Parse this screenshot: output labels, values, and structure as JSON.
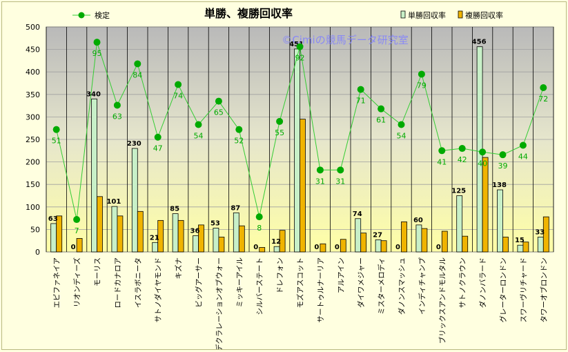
{
  "chart_data": {
    "type": "bar",
    "title": "単勝、複勝回収率",
    "watermark": "©Cimiの競馬データ研究室",
    "ylim": [
      0,
      500
    ],
    "yticks": [
      0,
      50,
      100,
      150,
      200,
      250,
      300,
      350,
      400,
      450,
      500
    ],
    "grid": true,
    "legend_placement": "top",
    "categories": [
      "エピファネイア",
      "リオンディーズ",
      "モーリス",
      "ロードカナロア",
      "イスラボニータ",
      "サトノダイヤモンド",
      "キズナ",
      "ビッグアーサー",
      "デクラレーションオブウォー",
      "ミッキーアイル",
      "シルバーステート",
      "ドレフォン",
      "モズアスコット",
      "サートゥルナーリア",
      "アルアイン",
      "ダイワメジャー",
      "ミスターメロディ",
      "ダノンスマッシュ",
      "インディチャンプ",
      "ブリックスアンドモルタル",
      "サトノクラウン",
      "ダノンバラード",
      "グレーターロンドン",
      "スワーヴリチャード",
      "タワーオブロンドン"
    ],
    "series": [
      {
        "name": "単勝回収率",
        "kind": "bar",
        "color": "#c8f0c8",
        "values": [
          63,
          0,
          340,
          101,
          230,
          21,
          85,
          36,
          53,
          87,
          0,
          12,
          451,
          0,
          0,
          74,
          27,
          0,
          60,
          0,
          125,
          456,
          138,
          15,
          33
        ],
        "labels": [
          "63",
          "0",
          "340",
          "101",
          "230",
          "21",
          "85",
          "36",
          "53",
          "87",
          "0",
          "12",
          "451",
          "0",
          "0",
          "74",
          "27",
          "0",
          "60",
          "0",
          "125",
          "456",
          "138",
          "15",
          "33"
        ]
      },
      {
        "name": "複勝回収率",
        "kind": "bar",
        "color": "#f0b400",
        "values": [
          80,
          30,
          123,
          80,
          90,
          70,
          70,
          60,
          33,
          58,
          10,
          48,
          295,
          18,
          28,
          42,
          25,
          67,
          52,
          46,
          35,
          210,
          33,
          22,
          78
        ]
      },
      {
        "name": "検定",
        "kind": "line",
        "color": "#33cc33",
        "marker_color": "#00aa00",
        "values": [
          272,
          72,
          466,
          326,
          418,
          255,
          372,
          283,
          335,
          272,
          78,
          290,
          456,
          182,
          182,
          361,
          318,
          283,
          395,
          225,
          230,
          222,
          216,
          237,
          365
        ],
        "labels": [
          "51",
          "7",
          "95",
          "63",
          "84",
          "47",
          "74",
          "54",
          "65",
          "52",
          "8",
          "55",
          "92",
          "31",
          "31",
          "71",
          "61",
          "54",
          "79",
          "41",
          "42",
          "40",
          "39",
          "44",
          "72"
        ]
      }
    ]
  }
}
